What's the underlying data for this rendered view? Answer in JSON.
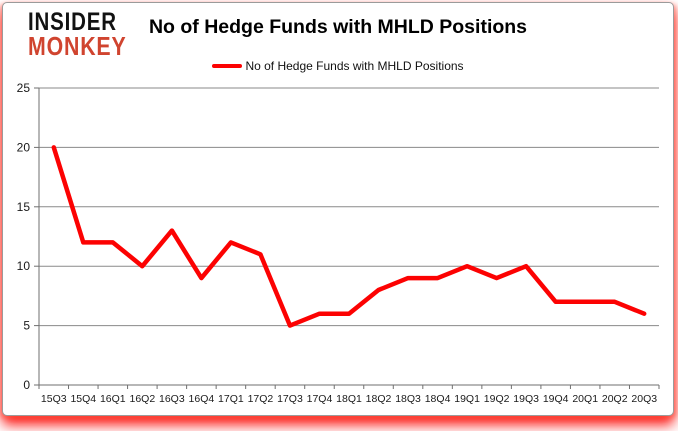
{
  "branding": {
    "logo_line1": "INSIDER",
    "logo_line2": "MONKEY",
    "logo_color": "#d0442f"
  },
  "header": {
    "title": "No of Hedge Funds with MHLD Positions"
  },
  "legend": {
    "label": "No of Hedge Funds with MHLD Positions",
    "line_color": "#fc0202"
  },
  "colors": {
    "series_red": "#fc0202",
    "gridline": "#8a8a8a",
    "axis": "#6f6f6f",
    "text": "#1a1a1a",
    "card_border": "#9b9b9b",
    "glow_red": "#fc0400"
  },
  "chart_data": {
    "type": "line",
    "title": "No of Hedge Funds with MHLD Positions",
    "categories": [
      "15Q3",
      "15Q4",
      "16Q1",
      "16Q2",
      "16Q3",
      "16Q4",
      "17Q1",
      "17Q2",
      "17Q3",
      "17Q4",
      "18Q1",
      "18Q2",
      "18Q3",
      "18Q4",
      "19Q1",
      "19Q2",
      "19Q3",
      "19Q4",
      "20Q1",
      "20Q2",
      "20Q3"
    ],
    "series": [
      {
        "name": "No of Hedge Funds with MHLD Positions",
        "color": "#fc0202",
        "values": [
          20,
          12,
          12,
          10,
          13,
          9,
          12,
          11,
          5,
          6,
          6,
          8,
          9,
          9,
          10,
          9,
          10,
          7,
          7,
          7,
          6
        ]
      }
    ],
    "xlabel": "",
    "ylabel": "",
    "ylim": [
      0,
      25
    ],
    "yticks": [
      0,
      5,
      10,
      15,
      20,
      25
    ],
    "grid": true,
    "legend_position": "top"
  }
}
